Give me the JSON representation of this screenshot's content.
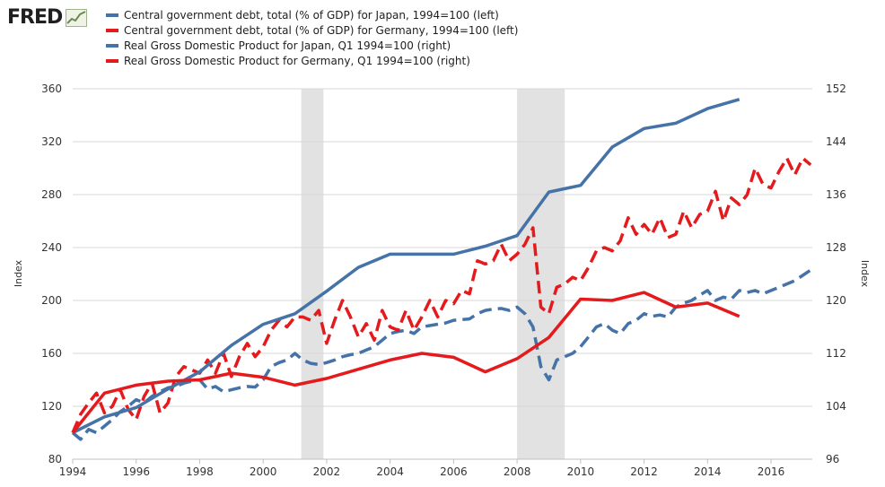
{
  "header": {
    "logo_text": "FRED",
    "logo_icon": "trend-chart-icon"
  },
  "colors": {
    "japan": "#4572a7",
    "germany": "#e41a1c",
    "recession": "#e2e2e2",
    "gridline": "#d7d7d7",
    "plot_background": "#ffffff"
  },
  "chart_data": {
    "type": "line",
    "title": "",
    "xlabel": "",
    "ylabel_left": "Index",
    "ylabel_right": "Index",
    "xlim": [
      1994,
      2017.3
    ],
    "ylim_left": [
      80,
      360
    ],
    "ylim_right": [
      96,
      152
    ],
    "x_ticks": [
      "1994",
      "1996",
      "1998",
      "2000",
      "2002",
      "2004",
      "2006",
      "2008",
      "2010",
      "2012",
      "2014",
      "2016"
    ],
    "y_left_ticks": [
      "80",
      "120",
      "160",
      "200",
      "240",
      "280",
      "320",
      "360"
    ],
    "y_right_ticks": [
      "96",
      "104",
      "112",
      "120",
      "128",
      "136",
      "144",
      "152"
    ],
    "grid": true,
    "legend_position": "top-left",
    "recessions": [
      [
        2001.2,
        2001.9
      ],
      [
        2008.0,
        2009.5
      ]
    ],
    "series": [
      {
        "name": "Central government debt, total (% of GDP) for Japan, 1994=100 (left)",
        "axis": "left",
        "color": "#4572a7",
        "style": "solid",
        "x": [
          1994,
          1995,
          1996,
          1997,
          1998,
          1999,
          2000,
          2001,
          2002,
          2003,
          2004,
          2005,
          2006,
          2007,
          2008,
          2009,
          2010,
          2011,
          2012,
          2013,
          2014,
          2015
        ],
        "y": [
          100,
          112,
          119,
          133,
          146,
          166,
          182,
          190,
          207,
          225,
          235,
          235,
          235,
          241,
          249,
          282,
          287,
          316,
          330,
          334,
          345,
          352
        ]
      },
      {
        "name": "Central government debt, total (% of GDP) for Germany, 1994=100 (left)",
        "axis": "left",
        "color": "#e41a1c",
        "style": "solid",
        "x": [
          1994,
          1995,
          1996,
          1997,
          1998,
          1999,
          2000,
          2001,
          2002,
          2003,
          2004,
          2005,
          2006,
          2007,
          2008,
          2009,
          2010,
          2011,
          2012,
          2013,
          2014,
          2015
        ],
        "y": [
          100,
          130,
          136,
          139,
          140,
          145,
          142,
          136,
          141,
          148,
          155,
          160,
          157,
          146,
          156,
          172,
          201,
          200,
          206,
          195,
          198,
          188
        ]
      },
      {
        "name": "Real Gross Domestic Product for Japan, Q1 1994=100 (right)",
        "axis": "right",
        "color": "#4572a7",
        "style": "dashed",
        "x": [
          1994.0,
          1994.25,
          1994.5,
          1994.75,
          1995.0,
          1995.25,
          1995.5,
          1995.75,
          1996.0,
          1996.25,
          1996.5,
          1996.75,
          1997.0,
          1997.25,
          1997.5,
          1997.75,
          1998.0,
          1998.25,
          1998.5,
          1998.75,
          1999.0,
          1999.25,
          1999.5,
          1999.75,
          2000.0,
          2000.25,
          2000.5,
          2000.75,
          2001.0,
          2001.25,
          2001.5,
          2001.75,
          2002.0,
          2002.25,
          2002.5,
          2002.75,
          2003.0,
          2003.25,
          2003.5,
          2003.75,
          2004.0,
          2004.25,
          2004.5,
          2004.75,
          2005.0,
          2005.25,
          2005.5,
          2005.75,
          2006.0,
          2006.25,
          2006.5,
          2006.75,
          2007.0,
          2007.25,
          2007.5,
          2007.75,
          2008.0,
          2008.25,
          2008.5,
          2008.75,
          2009.0,
          2009.25,
          2009.5,
          2009.75,
          2010.0,
          2010.25,
          2010.5,
          2010.75,
          2011.0,
          2011.25,
          2011.5,
          2011.75,
          2012.0,
          2012.25,
          2012.5,
          2012.75,
          2013.0,
          2013.25,
          2013.5,
          2013.75,
          2014.0,
          2014.25,
          2014.5,
          2014.75,
          2015.0,
          2015.25,
          2015.5,
          2015.75,
          2016.0,
          2016.25,
          2016.5,
          2016.75,
          2017.0,
          2017.25
        ],
        "y": [
          100.0,
          99.0,
          100.5,
          100.0,
          101.0,
          102.0,
          103.2,
          104.0,
          105.0,
          104.5,
          105.5,
          106.2,
          106.8,
          107.0,
          107.5,
          107.8,
          108.0,
          106.6,
          107.0,
          106.2,
          106.5,
          106.8,
          107.0,
          106.9,
          108.0,
          110.0,
          110.6,
          111.0,
          112.0,
          111.0,
          110.5,
          110.3,
          110.6,
          111.0,
          111.5,
          111.8,
          112.0,
          112.5,
          113.0,
          114.0,
          115.0,
          115.3,
          115.5,
          115.0,
          116.0,
          116.2,
          116.4,
          116.6,
          117.0,
          117.1,
          117.2,
          118.0,
          118.5,
          118.7,
          118.8,
          118.5,
          119.0,
          118.0,
          116.0,
          110.0,
          108.0,
          111.0,
          111.5,
          112.0,
          113.0,
          114.5,
          116.0,
          116.5,
          115.5,
          115.0,
          116.5,
          117.0,
          118.0,
          117.6,
          117.8,
          117.5,
          119.0,
          119.6,
          120.0,
          120.8,
          121.5,
          120.0,
          120.5,
          120.2,
          121.5,
          121.2,
          121.5,
          121.0,
          121.5,
          122.0,
          122.5,
          123.0,
          123.8,
          124.6
        ]
      },
      {
        "name": "Real Gross Domestic Product for Germany, Q1 1994=100 (right)",
        "axis": "right",
        "color": "#e41a1c",
        "style": "dashed",
        "x": [
          1994.0,
          1994.25,
          1994.5,
          1994.75,
          1995.0,
          1995.25,
          1995.5,
          1995.75,
          1996.0,
          1996.25,
          1996.5,
          1996.75,
          1997.0,
          1997.25,
          1997.5,
          1997.75,
          1998.0,
          1998.25,
          1998.5,
          1998.75,
          1999.0,
          1999.25,
          1999.5,
          1999.75,
          2000.0,
          2000.25,
          2000.5,
          2000.75,
          2001.0,
          2001.25,
          2001.5,
          2001.75,
          2002.0,
          2002.25,
          2002.5,
          2002.75,
          2003.0,
          2003.25,
          2003.5,
          2003.75,
          2004.0,
          2004.25,
          2004.5,
          2004.75,
          2005.0,
          2005.25,
          2005.5,
          2005.75,
          2006.0,
          2006.25,
          2006.5,
          2006.75,
          2007.0,
          2007.25,
          2007.5,
          2007.75,
          2008.0,
          2008.25,
          2008.5,
          2008.75,
          2009.0,
          2009.25,
          2009.5,
          2009.75,
          2010.0,
          2010.25,
          2010.5,
          2010.75,
          2011.0,
          2011.25,
          2011.5,
          2011.75,
          2012.0,
          2012.25,
          2012.5,
          2012.75,
          2013.0,
          2013.25,
          2013.5,
          2013.75,
          2014.0,
          2014.25,
          2014.5,
          2014.75,
          2015.0,
          2015.25,
          2015.5,
          2015.75,
          2016.0,
          2016.25,
          2016.5,
          2016.75,
          2017.0,
          2017.25
        ],
        "y": [
          100.0,
          102.8,
          104.5,
          106.0,
          103.0,
          104.0,
          106.5,
          103.5,
          102.0,
          105.5,
          107.5,
          103.0,
          104.5,
          108.5,
          110.0,
          109.5,
          109.0,
          111.0,
          109.0,
          112.0,
          108.5,
          111.5,
          113.5,
          111.5,
          113.0,
          115.5,
          117.0,
          116.0,
          117.5,
          117.5,
          117.0,
          118.5,
          113.5,
          117.0,
          120.0,
          117.5,
          114.5,
          116.5,
          114.0,
          118.5,
          116.0,
          115.5,
          118.5,
          115.5,
          117.5,
          120.0,
          117.5,
          120.0,
          119.5,
          121.5,
          121.0,
          126.0,
          125.5,
          126.0,
          128.5,
          126.0,
          127.0,
          128.5,
          131.0,
          119.0,
          118.0,
          122.0,
          122.5,
          123.5,
          123.0,
          125.0,
          127.5,
          128.0,
          127.5,
          129.0,
          132.5,
          130.0,
          131.5,
          130.0,
          132.5,
          129.5,
          130.0,
          133.5,
          131.0,
          133.0,
          133.5,
          136.5,
          132.0,
          135.5,
          134.5,
          136.0,
          140.0,
          137.5,
          137.0,
          139.5,
          141.5,
          139.0,
          141.5,
          140.5
        ]
      }
    ]
  }
}
